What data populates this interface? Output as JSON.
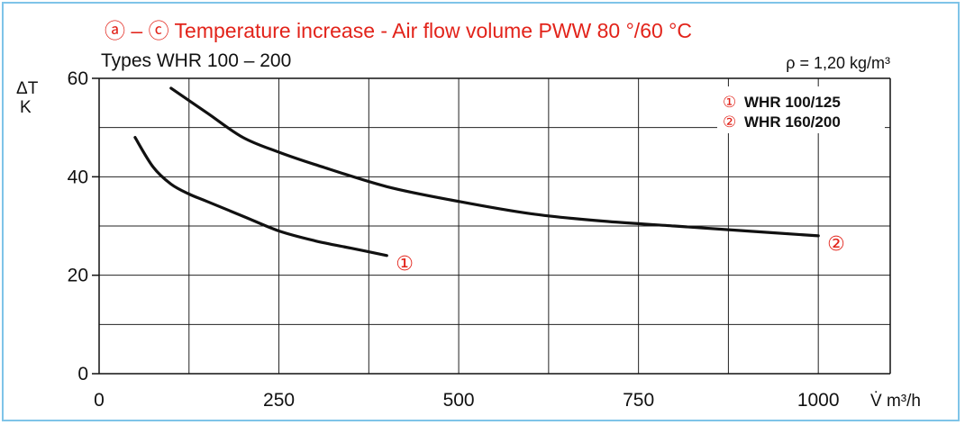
{
  "header": {
    "title": "ⓐ – ⓒ Temperature increase - Air flow volume PWW 80 °/60 °C",
    "subtitle": "Types WHR 100 – 200",
    "density": "ρ = 1,20 kg/m³"
  },
  "chart_data": {
    "type": "line",
    "title": "ⓐ – ⓒ Temperature increase - Air flow volume PWW 80 °/60 °C",
    "subtitle": "Types WHR 100 – 200",
    "annotation": "ρ = 1,20 kg/m³",
    "xlabel": "V̇ m³/h",
    "ylabel_line1": "ΔT",
    "ylabel_line2": "K",
    "xlim": [
      0,
      1100
    ],
    "ylim": [
      0,
      60
    ],
    "x_ticks": [
      0,
      250,
      500,
      750,
      1000
    ],
    "x_tick_labels": [
      "0",
      "250",
      "500",
      "750",
      "1000"
    ],
    "y_ticks": [
      0,
      20,
      40,
      60
    ],
    "y_tick_labels": [
      "0",
      "20",
      "40",
      "60"
    ],
    "x_grid": [
      125,
      250,
      375,
      500,
      625,
      750,
      875,
      1000
    ],
    "y_grid": [
      10,
      20,
      30,
      40,
      50,
      60
    ],
    "grid": true,
    "legend_position": "top-right",
    "series": [
      {
        "name": "WHR 100/125",
        "marker": "①",
        "x": [
          50,
          75,
          100,
          125,
          150,
          200,
          250,
          300,
          350,
          400
        ],
        "y": [
          48,
          42,
          38.5,
          36.5,
          35,
          32,
          29,
          27,
          25.5,
          24
        ]
      },
      {
        "name": "WHR 160/200",
        "marker": "②",
        "x": [
          100,
          150,
          200,
          250,
          300,
          400,
          500,
          600,
          700,
          800,
          900,
          1000
        ],
        "y": [
          58,
          53,
          48,
          45,
          42.5,
          38,
          35,
          32.5,
          31,
          30,
          29,
          28
        ]
      }
    ]
  }
}
